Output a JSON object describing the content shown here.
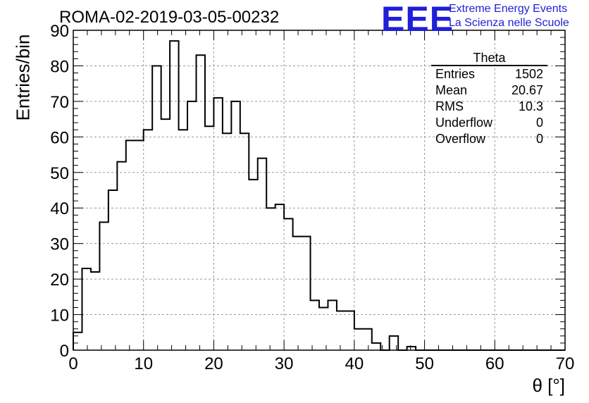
{
  "title": "ROMA-02-2019-03-05-00232",
  "logo": {
    "mark": "EEE",
    "line1": "Extreme Energy Events",
    "line2": "La Scienza nelle Scuole",
    "color": "#1f1fd8"
  },
  "stats": {
    "title": "Theta",
    "rows": [
      {
        "label": "Entries",
        "value": "1502"
      },
      {
        "label": "Mean",
        "value": "20.67"
      },
      {
        "label": "RMS",
        "value": "10.3"
      },
      {
        "label": "Underflow",
        "value": "0"
      },
      {
        "label": "Overflow",
        "value": "0"
      }
    ]
  },
  "chart_data": {
    "type": "bar",
    "histogram": true,
    "title": "ROMA-02-2019-03-05-00232",
    "xlabel": "θ [°]",
    "ylabel": "Entries/bin",
    "xlim": [
      0,
      70
    ],
    "ylim": [
      0,
      90
    ],
    "bin_width": 1.25,
    "x_ticks": [
      "0",
      "10",
      "20",
      "30",
      "40",
      "50",
      "60",
      "70"
    ],
    "y_ticks": [
      "0",
      "10",
      "20",
      "30",
      "40",
      "50",
      "60",
      "70",
      "80",
      "90"
    ],
    "grid": true,
    "values": [
      5,
      23,
      22,
      36,
      45,
      53,
      59,
      59,
      62,
      80,
      65,
      87,
      62,
      70,
      83,
      63,
      71,
      61,
      70,
      61,
      48,
      54,
      40,
      41,
      37,
      32,
      32,
      14,
      12,
      14,
      11,
      11,
      6,
      6,
      2,
      0,
      4,
      0,
      1,
      0,
      0,
      0,
      0,
      0,
      0,
      0,
      0,
      0,
      0,
      0,
      0,
      0,
      0,
      0,
      0,
      0
    ]
  }
}
